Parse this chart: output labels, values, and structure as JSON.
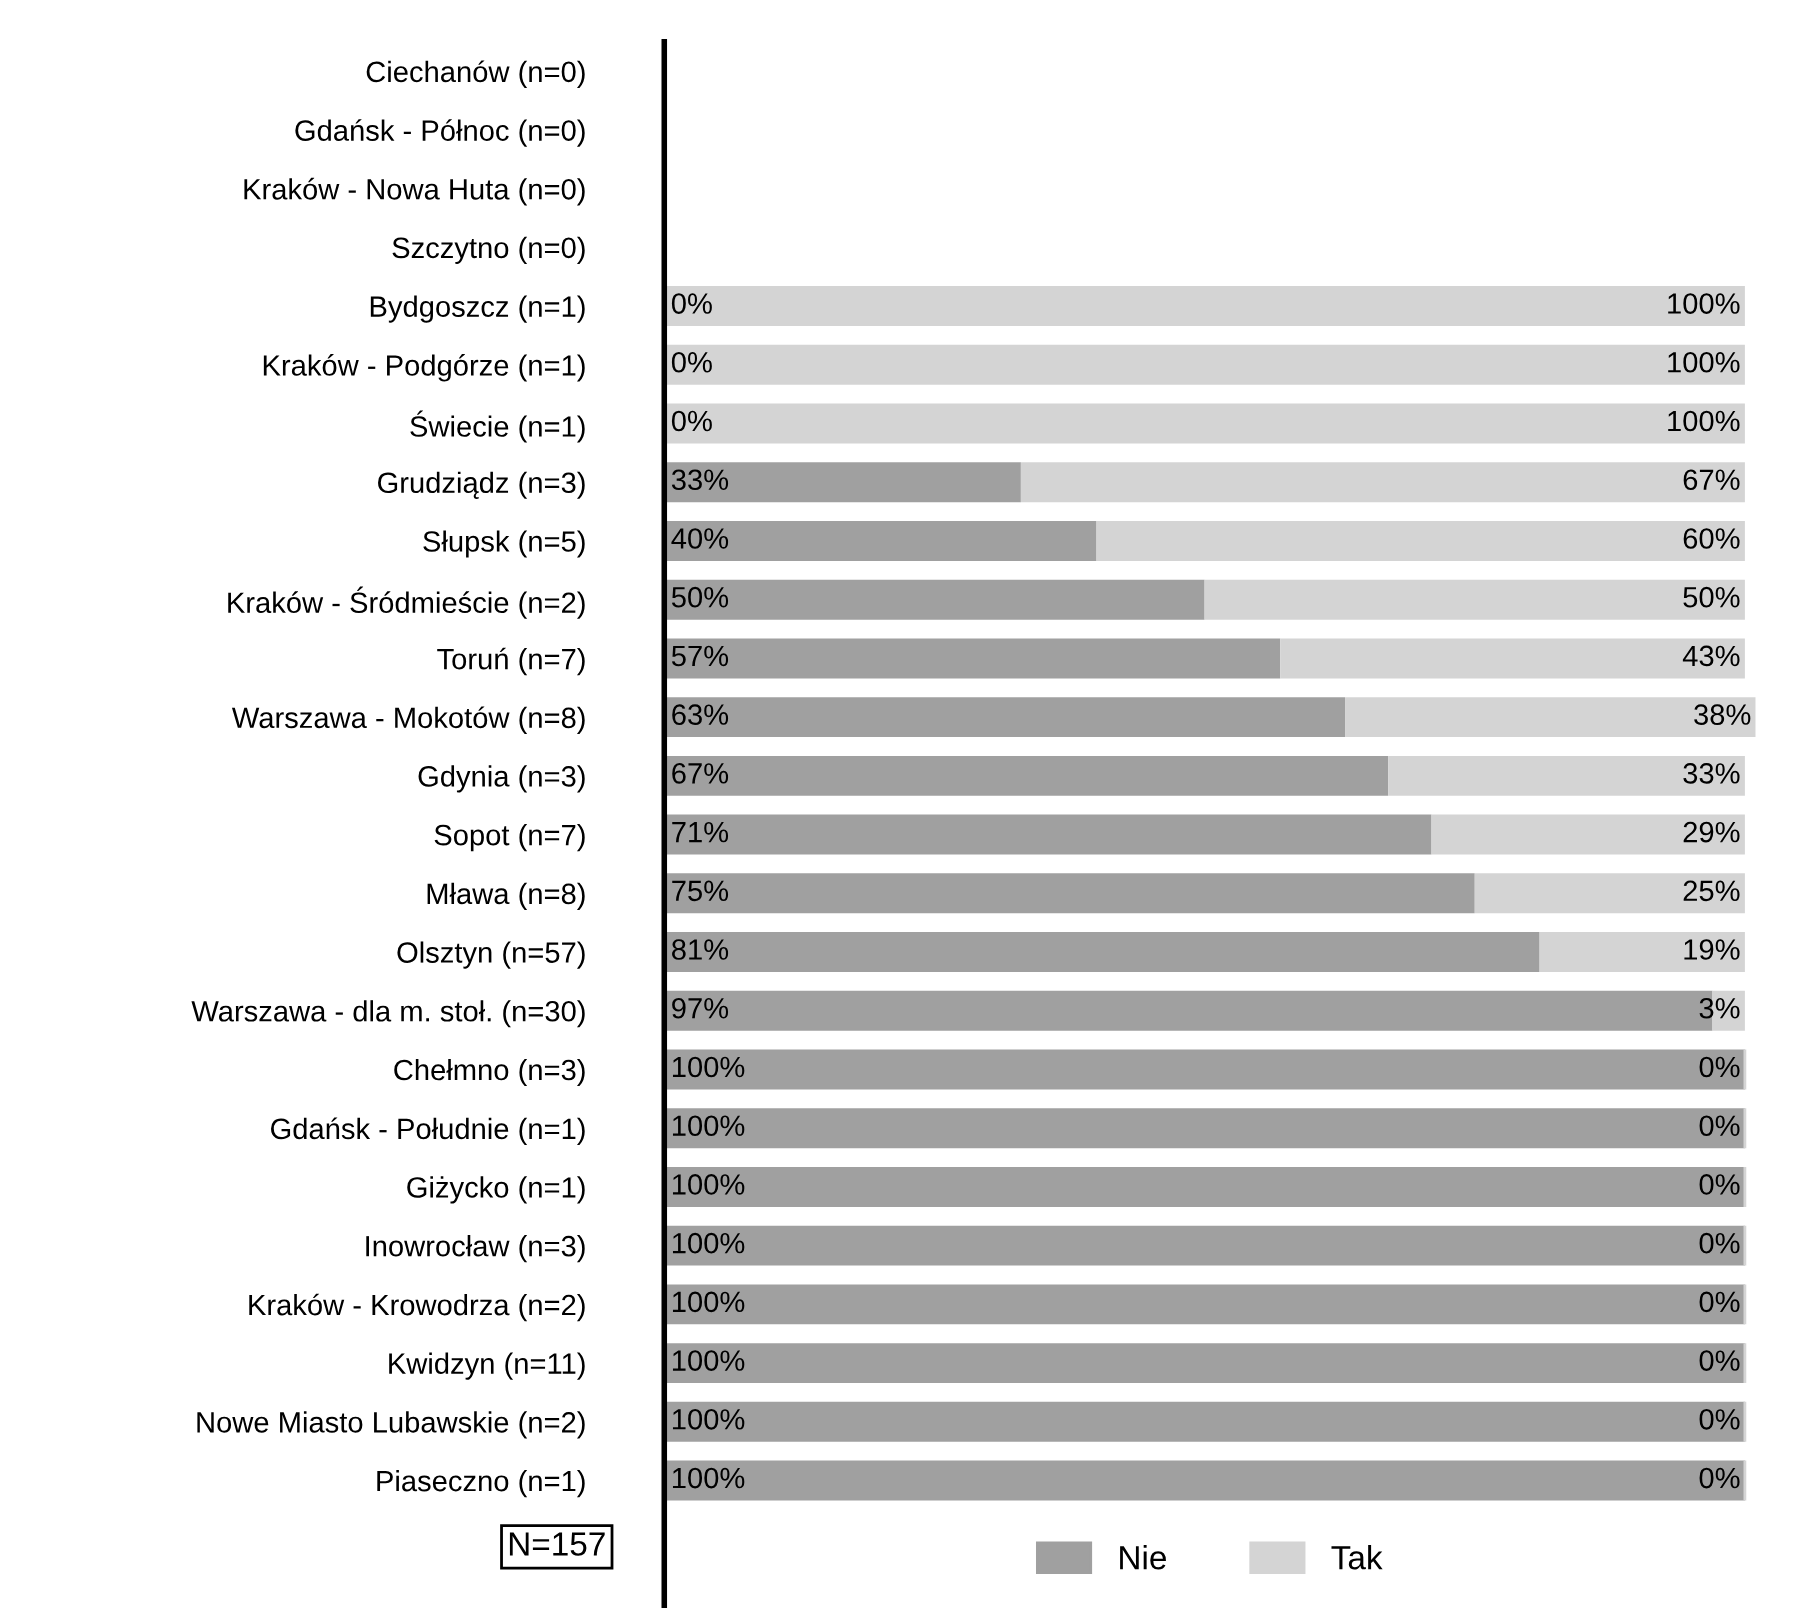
{
  "chart_data": {
    "type": "bar",
    "orientation": "horizontal",
    "stacked": true,
    "categories": [
      "Ciechanów (n=0)",
      "Gdańsk - Północ (n=0)",
      "Kraków - Nowa Huta (n=0)",
      "Szczytno (n=0)",
      "Bydgoszcz (n=1)",
      "Kraków - Podgórze (n=1)",
      "Świecie (n=1)",
      "Grudziądz (n=3)",
      "Słupsk (n=5)",
      "Kraków - Śródmieście (n=2)",
      "Toruń (n=7)",
      "Warszawa - Mokotów (n=8)",
      "Gdynia (n=3)",
      "Sopot (n=7)",
      "Mława (n=8)",
      "Olsztyn (n=57)",
      "Warszawa - dla m. stoł. (n=30)",
      "Chełmno (n=3)",
      "Gdańsk - Południe (n=1)",
      "Giżycko (n=1)",
      "Inowrocław (n=3)",
      "Kraków - Krowodrza (n=2)",
      "Kwidzyn (n=11)",
      "Nowe Miasto Lubawskie (n=2)",
      "Piaseczno (n=1)"
    ],
    "series": [
      {
        "name": "Nie",
        "color": "#a0a0a0",
        "values": [
          null,
          null,
          null,
          null,
          0,
          0,
          0,
          33,
          40,
          50,
          57,
          63,
          67,
          71,
          75,
          81,
          97,
          100,
          100,
          100,
          100,
          100,
          100,
          100,
          100
        ],
        "value_labels": [
          null,
          null,
          null,
          null,
          "0%",
          "0%",
          "0%",
          "33%",
          "40%",
          "50%",
          "57%",
          "63%",
          "67%",
          "71%",
          "75%",
          "81%",
          "97%",
          "100%",
          "100%",
          "100%",
          "100%",
          "100%",
          "100%",
          "100%",
          "100%"
        ]
      },
      {
        "name": "Tak",
        "color": "#d4d4d4",
        "values": [
          null,
          null,
          null,
          null,
          100,
          100,
          100,
          67,
          60,
          50,
          43,
          38,
          33,
          29,
          25,
          19,
          3,
          0,
          0,
          0,
          0,
          0,
          0,
          0,
          0
        ],
        "value_labels": [
          null,
          null,
          null,
          null,
          "100%",
          "100%",
          "100%",
          "67%",
          "60%",
          "50%",
          "43%",
          "38%",
          "33%",
          "29%",
          "25%",
          "19%",
          "3%",
          "0%",
          "0%",
          "0%",
          "0%",
          "0%",
          "0%",
          "0%",
          "0%"
        ]
      }
    ],
    "legend": "bottom",
    "annotations": [
      "N=157"
    ]
  }
}
